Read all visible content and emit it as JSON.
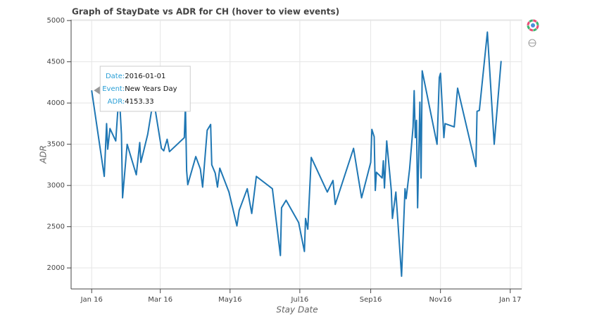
{
  "chart_data": {
    "type": "line",
    "title": "Graph of StayDate vs ADR for CH (hover to view events)",
    "x_label": "Stay Date",
    "y_label": "ADR",
    "x": [
      "2016-01-01",
      "2016-01-12",
      "2016-01-14",
      "2016-01-15",
      "2016-01-17",
      "2016-01-22",
      "2016-01-25",
      "2016-01-27",
      "2016-01-28",
      "2016-02-01",
      "2016-02-09",
      "2016-02-12",
      "2016-02-13",
      "2016-02-19",
      "2016-02-24",
      "2016-03-02",
      "2016-03-04",
      "2016-03-07",
      "2016-03-09",
      "2016-03-22",
      "2016-03-23",
      "2016-03-24",
      "2016-03-25",
      "2016-04-01",
      "2016-04-05",
      "2016-04-07",
      "2016-04-11",
      "2016-04-14",
      "2016-04-15",
      "2016-04-18",
      "2016-04-20",
      "2016-04-22",
      "2016-04-30",
      "2016-05-07",
      "2016-05-09",
      "2016-05-16",
      "2016-05-20",
      "2016-05-24",
      "2016-06-07",
      "2016-06-14",
      "2016-06-15",
      "2016-06-19",
      "2016-06-30",
      "2016-07-05",
      "2016-07-06",
      "2016-07-08",
      "2016-07-11",
      "2016-07-25",
      "2016-07-30",
      "2016-08-01",
      "2016-08-17",
      "2016-08-24",
      "2016-09-01",
      "2016-09-02",
      "2016-09-04",
      "2016-09-05",
      "2016-09-06",
      "2016-09-11",
      "2016-09-12",
      "2016-09-13",
      "2016-09-15",
      "2016-09-19",
      "2016-09-20",
      "2016-09-23",
      "2016-09-28",
      "2016-10-01",
      "2016-10-02",
      "2016-10-05",
      "2016-10-08",
      "2016-10-09",
      "2016-10-10",
      "2016-10-11",
      "2016-10-12",
      "2016-10-14",
      "2016-10-15",
      "2016-10-16",
      "2016-10-29",
      "2016-10-31",
      "2016-11-01",
      "2016-11-04",
      "2016-11-05",
      "2016-11-13",
      "2016-11-16",
      "2016-12-02",
      "2016-12-03",
      "2016-12-05",
      "2016-12-12",
      "2016-12-18",
      "2016-12-24"
    ],
    "values": [
      4153.33,
      3110,
      3750,
      3440,
      3690,
      3540,
      4140,
      3620,
      2850,
      3500,
      3130,
      3520,
      3280,
      3620,
      4050,
      3450,
      3420,
      3560,
      3410,
      3580,
      3980,
      3180,
      3010,
      3350,
      3200,
      2980,
      3670,
      3740,
      3250,
      3150,
      2980,
      3210,
      2920,
      2510,
      2700,
      2960,
      2660,
      3110,
      2960,
      2150,
      2730,
      2820,
      2550,
      2200,
      2600,
      2470,
      3340,
      2920,
      3060,
      2770,
      3450,
      2850,
      3280,
      3680,
      3590,
      2940,
      3160,
      3090,
      3300,
      2970,
      3540,
      2940,
      2600,
      2920,
      1900,
      2960,
      2840,
      3200,
      3710,
      4150,
      3580,
      3790,
      2730,
      4010,
      3090,
      4390,
      3500,
      4310,
      4360,
      3580,
      3750,
      3710,
      4180,
      3230,
      3900,
      3910,
      4860,
      3500,
      4510
    ],
    "color": "#1f77b4",
    "xlim": [
      "2015-12-14",
      "2017-01-11"
    ],
    "xticks": [
      {
        "value": "2016-01-01",
        "label": "Jan 16"
      },
      {
        "value": "2016-03-01",
        "label": "Mar 16"
      },
      {
        "value": "2016-05-01",
        "label": "May16"
      },
      {
        "value": "2016-07-01",
        "label": "Jul16"
      },
      {
        "value": "2016-09-01",
        "label": "Sep16"
      },
      {
        "value": "2016-11-01",
        "label": "Nov16"
      },
      {
        "value": "2017-01-01",
        "label": "Jan 17"
      }
    ],
    "ylim": [
      1745,
      5010
    ],
    "yticks": [
      2000,
      2500,
      3000,
      3500,
      4000,
      4500,
      5000
    ],
    "grid": true,
    "tooltip": {
      "date_label": "Date:",
      "event_label": "Event:",
      "event": "New Years Day",
      "adr_label": "ADR:"
    }
  }
}
